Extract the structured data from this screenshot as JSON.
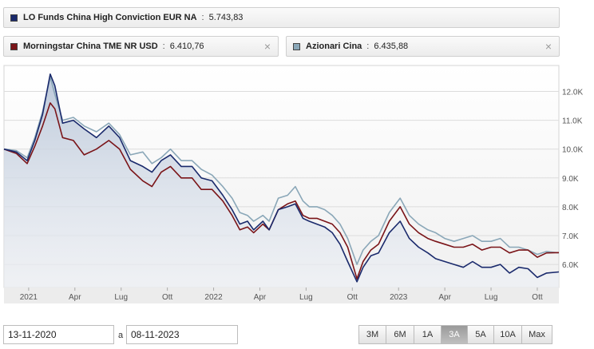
{
  "legend": [
    {
      "name": "LO Funds China High Conviction EUR NA",
      "value": "5.743,83",
      "color": "#1a2a6c",
      "closable": false
    },
    {
      "name": "Morningstar China TME NR USD",
      "value": "6.410,76",
      "color": "#7a1418",
      "closable": true
    },
    {
      "name": "Azionari Cina",
      "value": "6.435,88",
      "color": "#8aa7b8",
      "closable": true
    }
  ],
  "legend_separator": ":",
  "close_glyph": "×",
  "date_from": "13-11-2020",
  "date_sep": "a",
  "date_to": "08-11-2023",
  "ranges": [
    {
      "label": "3M",
      "active": false
    },
    {
      "label": "6M",
      "active": false
    },
    {
      "label": "1A",
      "active": false
    },
    {
      "label": "3A",
      "active": true
    },
    {
      "label": "5A",
      "active": false
    },
    {
      "label": "10A",
      "active": false
    },
    {
      "label": "Max",
      "active": false
    }
  ],
  "chart_data": {
    "type": "line",
    "title": "",
    "xlabel": "",
    "ylabel": "",
    "ylim": [
      5.2,
      12.9
    ],
    "y_ticks": [
      {
        "value": 6,
        "label": "6.0K"
      },
      {
        "value": 7,
        "label": "7.0K"
      },
      {
        "value": 8,
        "label": "8.0K"
      },
      {
        "value": 9,
        "label": "9.0K"
      },
      {
        "value": 10,
        "label": "10.0K"
      },
      {
        "value": 11,
        "label": "11.0K"
      },
      {
        "value": 12,
        "label": "12.0K"
      }
    ],
    "xlim": [
      0,
      36
    ],
    "x_ticks": [
      {
        "value": 1.6,
        "label": "2021"
      },
      {
        "value": 4.6,
        "label": "Apr"
      },
      {
        "value": 7.6,
        "label": "Lug"
      },
      {
        "value": 10.6,
        "label": "Ott"
      },
      {
        "value": 13.6,
        "label": "2022"
      },
      {
        "value": 16.6,
        "label": "Apr"
      },
      {
        "value": 19.6,
        "label": "Lug"
      },
      {
        "value": 22.6,
        "label": "Ott"
      },
      {
        "value": 25.6,
        "label": "2023"
      },
      {
        "value": 28.6,
        "label": "Apr"
      },
      {
        "value": 31.6,
        "label": "Lug"
      },
      {
        "value": 34.6,
        "label": "Ott"
      }
    ],
    "grid": true,
    "legend_position": "top",
    "series": [
      {
        "name": "Azionari Cina",
        "color": "#8aa7b8",
        "points": [
          [
            0,
            10.0
          ],
          [
            0.8,
            9.95
          ],
          [
            1.5,
            9.7
          ],
          [
            2.0,
            10.4
          ],
          [
            2.5,
            11.3
          ],
          [
            3.0,
            12.5
          ],
          [
            3.3,
            11.9
          ],
          [
            3.8,
            11.0
          ],
          [
            4.5,
            11.1
          ],
          [
            5.2,
            10.8
          ],
          [
            6.0,
            10.6
          ],
          [
            6.8,
            10.9
          ],
          [
            7.5,
            10.5
          ],
          [
            8.2,
            9.8
          ],
          [
            9.0,
            9.9
          ],
          [
            9.6,
            9.5
          ],
          [
            10.2,
            9.7
          ],
          [
            10.8,
            10.0
          ],
          [
            11.5,
            9.6
          ],
          [
            12.2,
            9.6
          ],
          [
            12.8,
            9.3
          ],
          [
            13.5,
            9.1
          ],
          [
            14.2,
            8.7
          ],
          [
            14.8,
            8.3
          ],
          [
            15.3,
            7.8
          ],
          [
            15.8,
            7.7
          ],
          [
            16.2,
            7.5
          ],
          [
            16.8,
            7.7
          ],
          [
            17.2,
            7.5
          ],
          [
            17.8,
            8.3
          ],
          [
            18.4,
            8.4
          ],
          [
            18.9,
            8.7
          ],
          [
            19.4,
            8.2
          ],
          [
            19.8,
            8.0
          ],
          [
            20.3,
            8.0
          ],
          [
            20.8,
            7.9
          ],
          [
            21.3,
            7.7
          ],
          [
            21.8,
            7.4
          ],
          [
            22.3,
            6.9
          ],
          [
            22.9,
            6.0
          ],
          [
            23.3,
            6.5
          ],
          [
            23.8,
            6.8
          ],
          [
            24.3,
            7.0
          ],
          [
            25.0,
            7.8
          ],
          [
            25.7,
            8.3
          ],
          [
            26.3,
            7.7
          ],
          [
            26.9,
            7.4
          ],
          [
            27.5,
            7.2
          ],
          [
            28.0,
            7.1
          ],
          [
            28.6,
            6.9
          ],
          [
            29.2,
            6.8
          ],
          [
            29.8,
            6.9
          ],
          [
            30.4,
            7.0
          ],
          [
            31.0,
            6.8
          ],
          [
            31.6,
            6.8
          ],
          [
            32.2,
            6.9
          ],
          [
            32.8,
            6.6
          ],
          [
            33.4,
            6.6
          ],
          [
            34.0,
            6.5
          ],
          [
            34.6,
            6.35
          ],
          [
            35.2,
            6.45
          ],
          [
            36.0,
            6.4
          ]
        ]
      },
      {
        "name": "Morningstar China TME NR USD",
        "color": "#7a1418",
        "points": [
          [
            0,
            10.0
          ],
          [
            0.8,
            9.85
          ],
          [
            1.5,
            9.5
          ],
          [
            2.0,
            10.1
          ],
          [
            2.5,
            10.8
          ],
          [
            3.0,
            11.6
          ],
          [
            3.3,
            11.4
          ],
          [
            3.8,
            10.4
          ],
          [
            4.5,
            10.3
          ],
          [
            5.2,
            9.8
          ],
          [
            6.0,
            10.0
          ],
          [
            6.8,
            10.3
          ],
          [
            7.5,
            10.0
          ],
          [
            8.2,
            9.3
          ],
          [
            9.0,
            8.9
          ],
          [
            9.6,
            8.7
          ],
          [
            10.2,
            9.2
          ],
          [
            10.8,
            9.4
          ],
          [
            11.5,
            9.0
          ],
          [
            12.2,
            9.0
          ],
          [
            12.8,
            8.6
          ],
          [
            13.5,
            8.6
          ],
          [
            14.2,
            8.2
          ],
          [
            14.8,
            7.7
          ],
          [
            15.3,
            7.2
          ],
          [
            15.8,
            7.3
          ],
          [
            16.2,
            7.1
          ],
          [
            16.8,
            7.4
          ],
          [
            17.2,
            7.2
          ],
          [
            17.8,
            7.9
          ],
          [
            18.4,
            8.1
          ],
          [
            18.9,
            8.2
          ],
          [
            19.4,
            7.7
          ],
          [
            19.8,
            7.6
          ],
          [
            20.3,
            7.6
          ],
          [
            20.8,
            7.5
          ],
          [
            21.3,
            7.4
          ],
          [
            21.8,
            7.1
          ],
          [
            22.3,
            6.6
          ],
          [
            22.9,
            5.5
          ],
          [
            23.3,
            6.1
          ],
          [
            23.8,
            6.5
          ],
          [
            24.3,
            6.7
          ],
          [
            25.0,
            7.5
          ],
          [
            25.7,
            8.0
          ],
          [
            26.3,
            7.4
          ],
          [
            26.9,
            7.1
          ],
          [
            27.5,
            6.9
          ],
          [
            28.0,
            6.8
          ],
          [
            28.6,
            6.7
          ],
          [
            29.2,
            6.6
          ],
          [
            29.8,
            6.6
          ],
          [
            30.4,
            6.7
          ],
          [
            31.0,
            6.5
          ],
          [
            31.6,
            6.6
          ],
          [
            32.2,
            6.6
          ],
          [
            32.8,
            6.4
          ],
          [
            33.4,
            6.5
          ],
          [
            34.0,
            6.5
          ],
          [
            34.6,
            6.25
          ],
          [
            35.2,
            6.4
          ],
          [
            36.0,
            6.41
          ]
        ]
      },
      {
        "name": "LO Funds China High Conviction EUR NA",
        "color": "#1a2a6c",
        "points": [
          [
            0,
            10.0
          ],
          [
            0.8,
            9.9
          ],
          [
            1.5,
            9.6
          ],
          [
            2.0,
            10.3
          ],
          [
            2.5,
            11.2
          ],
          [
            3.0,
            12.6
          ],
          [
            3.3,
            12.2
          ],
          [
            3.8,
            10.9
          ],
          [
            4.5,
            11.0
          ],
          [
            5.2,
            10.7
          ],
          [
            6.0,
            10.4
          ],
          [
            6.8,
            10.8
          ],
          [
            7.5,
            10.4
          ],
          [
            8.2,
            9.6
          ],
          [
            9.0,
            9.4
          ],
          [
            9.6,
            9.2
          ],
          [
            10.2,
            9.6
          ],
          [
            10.8,
            9.8
          ],
          [
            11.5,
            9.4
          ],
          [
            12.2,
            9.4
          ],
          [
            12.8,
            9.0
          ],
          [
            13.5,
            8.9
          ],
          [
            14.2,
            8.4
          ],
          [
            14.8,
            7.9
          ],
          [
            15.3,
            7.4
          ],
          [
            15.8,
            7.5
          ],
          [
            16.2,
            7.2
          ],
          [
            16.8,
            7.5
          ],
          [
            17.2,
            7.2
          ],
          [
            17.8,
            7.9
          ],
          [
            18.4,
            8.0
          ],
          [
            18.9,
            8.1
          ],
          [
            19.4,
            7.6
          ],
          [
            19.8,
            7.5
          ],
          [
            20.3,
            7.4
          ],
          [
            20.8,
            7.3
          ],
          [
            21.3,
            7.1
          ],
          [
            21.8,
            6.7
          ],
          [
            22.3,
            6.1
          ],
          [
            22.9,
            5.4
          ],
          [
            23.3,
            5.9
          ],
          [
            23.8,
            6.3
          ],
          [
            24.3,
            6.4
          ],
          [
            25.0,
            7.1
          ],
          [
            25.7,
            7.5
          ],
          [
            26.3,
            6.9
          ],
          [
            26.9,
            6.6
          ],
          [
            27.5,
            6.4
          ],
          [
            28.0,
            6.2
          ],
          [
            28.6,
            6.1
          ],
          [
            29.2,
            6.0
          ],
          [
            29.8,
            5.9
          ],
          [
            30.4,
            6.1
          ],
          [
            31.0,
            5.9
          ],
          [
            31.6,
            5.9
          ],
          [
            32.2,
            6.0
          ],
          [
            32.8,
            5.7
          ],
          [
            33.4,
            5.9
          ],
          [
            34.0,
            5.85
          ],
          [
            34.6,
            5.55
          ],
          [
            35.2,
            5.7
          ],
          [
            36.0,
            5.74
          ]
        ]
      }
    ]
  }
}
